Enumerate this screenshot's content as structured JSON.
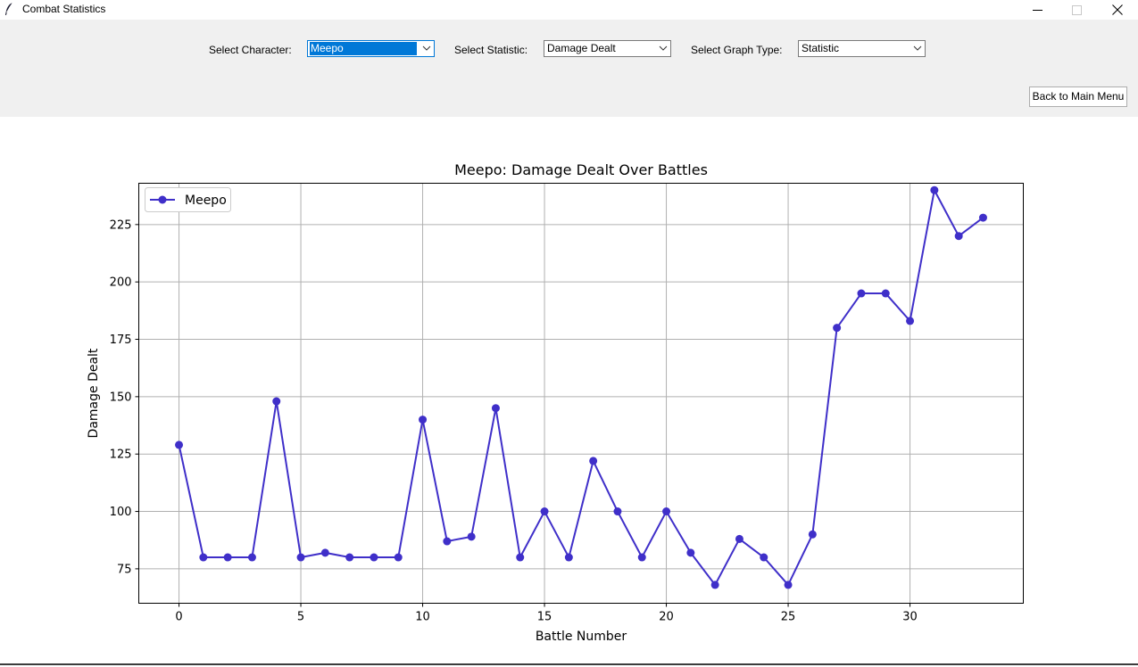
{
  "window": {
    "title": "Combat Statistics",
    "icon": "feather-icon",
    "controls": [
      "minimize-icon",
      "maximize-icon",
      "close-icon"
    ]
  },
  "controls": {
    "character_label": "Select Character:",
    "character_value": "Meepo",
    "statistic_label": "Select Statistic:",
    "statistic_value": "Damage Dealt",
    "graph_type_label": "Select Graph Type:",
    "graph_type_value": "Statistic",
    "back_button": "Back to Main Menu"
  },
  "colors": {
    "series": "#3f2fc9",
    "focus": "#0078d7",
    "toolbar_bg": "#f0f0f0",
    "grid": "#b0b0b0"
  },
  "chart_data": {
    "type": "line",
    "title": "Meepo: Damage Dealt Over Battles",
    "xlabel": "Battle Number",
    "ylabel": "Damage Dealt",
    "xlim": [
      -1.65,
      34.65
    ],
    "ylim": [
      60,
      243
    ],
    "xticks": [
      0,
      5,
      10,
      15,
      20,
      25,
      30
    ],
    "yticks": [
      75,
      100,
      125,
      150,
      175,
      200,
      225
    ],
    "grid": true,
    "legend": "upper-left",
    "series": [
      {
        "name": "Meepo",
        "marker": "circle",
        "x": [
          0,
          1,
          2,
          3,
          4,
          5,
          6,
          7,
          8,
          9,
          10,
          11,
          12,
          13,
          14,
          15,
          16,
          17,
          18,
          19,
          20,
          21,
          22,
          23,
          24,
          25,
          26,
          27,
          28,
          29,
          30,
          31,
          32,
          33
        ],
        "values": [
          129,
          80,
          80,
          80,
          148,
          80,
          82,
          80,
          80,
          80,
          140,
          87,
          89,
          145,
          80,
          100,
          80,
          122,
          100,
          80,
          100,
          82,
          68,
          88,
          80,
          68,
          90,
          180,
          195,
          195,
          183,
          240,
          220,
          228
        ]
      }
    ]
  }
}
